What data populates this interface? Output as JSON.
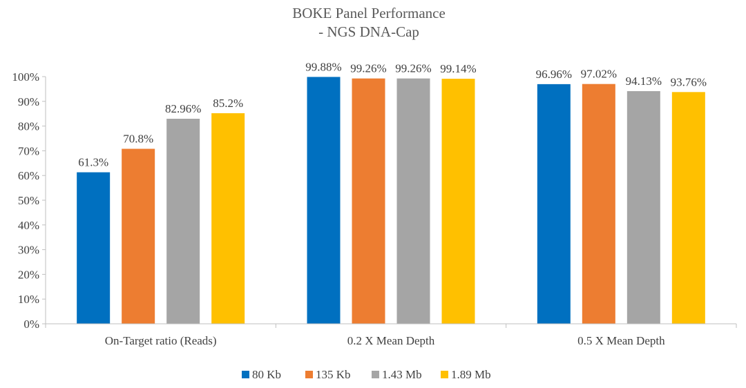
{
  "chart_data": {
    "type": "bar",
    "title": [
      "BOKE Panel Performance",
      "- NGS DNA-Cap"
    ],
    "categories": [
      "On-Target ratio (Reads)",
      "0.2 X Mean Depth",
      "0.5 X Mean Depth"
    ],
    "series": [
      {
        "name": "80 Kb",
        "color": "#0070C0",
        "values": [
          61.3,
          99.88,
          96.96
        ],
        "labels": [
          "61.3%",
          "99.88%",
          "96.96%"
        ]
      },
      {
        "name": "135 Kb",
        "color": "#ED7D31",
        "values": [
          70.8,
          99.26,
          97.02
        ],
        "labels": [
          "70.8%",
          "99.26%",
          "97.02%"
        ]
      },
      {
        "name": "1.43 Mb",
        "color": "#A5A5A5",
        "values": [
          82.96,
          99.26,
          94.13
        ],
        "labels": [
          "82.96%",
          "99.26%",
          "94.13%"
        ]
      },
      {
        "name": "1.89 Mb",
        "color": "#FFC000",
        "values": [
          85.2,
          99.14,
          93.76
        ],
        "labels": [
          "85.2%",
          "99.14%",
          "93.76%"
        ]
      }
    ],
    "ylim": [
      0,
      100
    ],
    "yticks": [
      {
        "value": 0,
        "label": "0%"
      },
      {
        "value": 10,
        "label": "10%"
      },
      {
        "value": 20,
        "label": "20%"
      },
      {
        "value": 30,
        "label": "30%"
      },
      {
        "value": 40,
        "label": "40%"
      },
      {
        "value": 50,
        "label": "50%"
      },
      {
        "value": 60,
        "label": "60%"
      },
      {
        "value": 70,
        "label": "70%"
      },
      {
        "value": 80,
        "label": "80%"
      },
      {
        "value": 90,
        "label": "90%"
      },
      {
        "value": 100,
        "label": "100%"
      }
    ],
    "xlabel": "",
    "ylabel": "",
    "grid": false,
    "legend_position": "bottom"
  }
}
